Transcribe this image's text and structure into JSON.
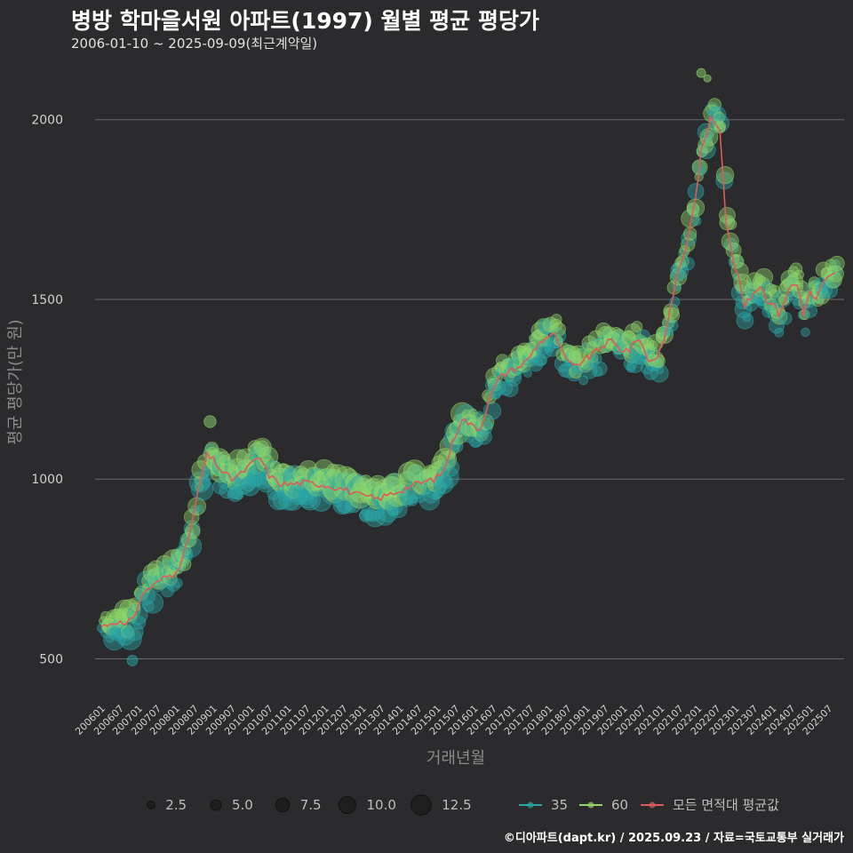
{
  "header": {
    "title": "병방 학마을서원 아파트(1997) 월별 평균 평당가",
    "subtitle": "2006-01-10 ~ 2025-09-09(최근계약일)"
  },
  "footer": {
    "credit": "©디아파트(dapt.kr) / 2025.09.23 / 자료=국토교통부 실거래가"
  },
  "colors": {
    "background": "#2b2b2d",
    "grid": "#6a6a6a",
    "series35": "#2aa6a6",
    "series60": "#8fd66b",
    "avgLine": "#e05a5a"
  },
  "chart_data": {
    "type": "scatter",
    "title": "병방 학마을서원 아파트(1997) 월별 평균 평당가",
    "xlabel": "거래년월",
    "ylabel": "평균 평당가(만 원)",
    "ylim": [
      380,
      2160
    ],
    "yticks": [
      500,
      1000,
      1500,
      2000
    ],
    "xlim": [
      "2005-11",
      "2025-12"
    ],
    "xticks": [
      "200601",
      "200607",
      "200701",
      "200707",
      "200801",
      "200807",
      "200901",
      "200907",
      "201001",
      "201007",
      "201101",
      "201107",
      "201201",
      "201207",
      "201301",
      "201307",
      "201401",
      "201407",
      "201501",
      "201507",
      "201601",
      "201607",
      "201701",
      "201707",
      "201801",
      "201807",
      "201901",
      "201907",
      "202001",
      "202007",
      "202101",
      "202107",
      "202201",
      "202207",
      "202301",
      "202307",
      "202401",
      "202407",
      "202501",
      "202507"
    ],
    "size_legend": {
      "values": [
        2.5,
        5.0,
        7.5,
        10.0,
        12.5
      ],
      "labels": [
        "2.5",
        "5.0",
        "7.5",
        "10.0",
        "12.5"
      ]
    },
    "series_legend": [
      "35",
      "60",
      "모든 면적대 평균값"
    ],
    "avg_line_anchors": [
      [
        "2006-01",
        590
      ],
      [
        "2006-06",
        605
      ],
      [
        "2006-09",
        590
      ],
      [
        "2006-12",
        630
      ],
      [
        "2007-03",
        690
      ],
      [
        "2007-06",
        705
      ],
      [
        "2007-09",
        725
      ],
      [
        "2007-12",
        735
      ],
      [
        "2008-03",
        770
      ],
      [
        "2008-06",
        870
      ],
      [
        "2008-09",
        1000
      ],
      [
        "2008-11",
        1065
      ],
      [
        "2009-01",
        1055
      ],
      [
        "2009-04",
        1020
      ],
      [
        "2009-07",
        1000
      ],
      [
        "2009-10",
        1015
      ],
      [
        "2010-01",
        1040
      ],
      [
        "2010-04",
        1060
      ],
      [
        "2010-07",
        1010
      ],
      [
        "2010-10",
        990
      ],
      [
        "2011-01",
        985
      ],
      [
        "2011-06",
        990
      ],
      [
        "2011-12",
        985
      ],
      [
        "2012-06",
        975
      ],
      [
        "2012-12",
        955
      ],
      [
        "2013-06",
        945
      ],
      [
        "2013-12",
        965
      ],
      [
        "2014-06",
        985
      ],
      [
        "2014-12",
        1000
      ],
      [
        "2015-03",
        1020
      ],
      [
        "2015-06",
        1100
      ],
      [
        "2015-09",
        1170
      ],
      [
        "2015-12",
        1150
      ],
      [
        "2016-03",
        1140
      ],
      [
        "2016-06",
        1230
      ],
      [
        "2016-09",
        1280
      ],
      [
        "2016-12",
        1300
      ],
      [
        "2017-03",
        1310
      ],
      [
        "2017-06",
        1330
      ],
      [
        "2017-09",
        1370
      ],
      [
        "2017-12",
        1395
      ],
      [
        "2018-03",
        1400
      ],
      [
        "2018-06",
        1340
      ],
      [
        "2018-09",
        1310
      ],
      [
        "2018-12",
        1330
      ],
      [
        "2019-03",
        1345
      ],
      [
        "2019-06",
        1370
      ],
      [
        "2019-09",
        1385
      ],
      [
        "2019-12",
        1360
      ],
      [
        "2020-03",
        1360
      ],
      [
        "2020-06",
        1395
      ],
      [
        "2020-09",
        1330
      ],
      [
        "2020-12",
        1340
      ],
      [
        "2021-03",
        1420
      ],
      [
        "2021-06",
        1560
      ],
      [
        "2021-09",
        1640
      ],
      [
        "2021-12",
        1770
      ],
      [
        "2022-02",
        1910
      ],
      [
        "2022-04",
        1960
      ],
      [
        "2022-05",
        2015
      ],
      [
        "2022-06",
        2000
      ],
      [
        "2022-08",
        1980
      ],
      [
        "2022-10",
        1720
      ],
      [
        "2022-12",
        1620
      ],
      [
        "2023-02",
        1560
      ],
      [
        "2023-04",
        1480
      ],
      [
        "2023-07",
        1520
      ],
      [
        "2023-09",
        1540
      ],
      [
        "2023-11",
        1500
      ],
      [
        "2024-01",
        1490
      ],
      [
        "2024-03",
        1460
      ],
      [
        "2024-05",
        1500
      ],
      [
        "2024-07",
        1540
      ],
      [
        "2024-09",
        1540
      ],
      [
        "2024-11",
        1460
      ],
      [
        "2025-01",
        1520
      ],
      [
        "2025-03",
        1500
      ],
      [
        "2025-05",
        1540
      ],
      [
        "2025-07",
        1560
      ],
      [
        "2025-09",
        1570
      ]
    ],
    "series": [
      {
        "name": "35",
        "color": "#2aa6a6",
        "noise": 45,
        "offset": -10
      },
      {
        "name": "60",
        "color": "#8fd66b",
        "noise": 30,
        "offset": 15
      }
    ],
    "notable_points": [
      {
        "series": "60",
        "x": "2022-02",
        "y": 2130,
        "size": 3
      },
      {
        "series": "60",
        "x": "2022-04",
        "y": 2115,
        "size": 2
      },
      {
        "series": "35",
        "x": "2006-11",
        "y": 495,
        "size": 4
      },
      {
        "series": "60",
        "x": "2008-12",
        "y": 1160,
        "size": 5
      }
    ]
  }
}
